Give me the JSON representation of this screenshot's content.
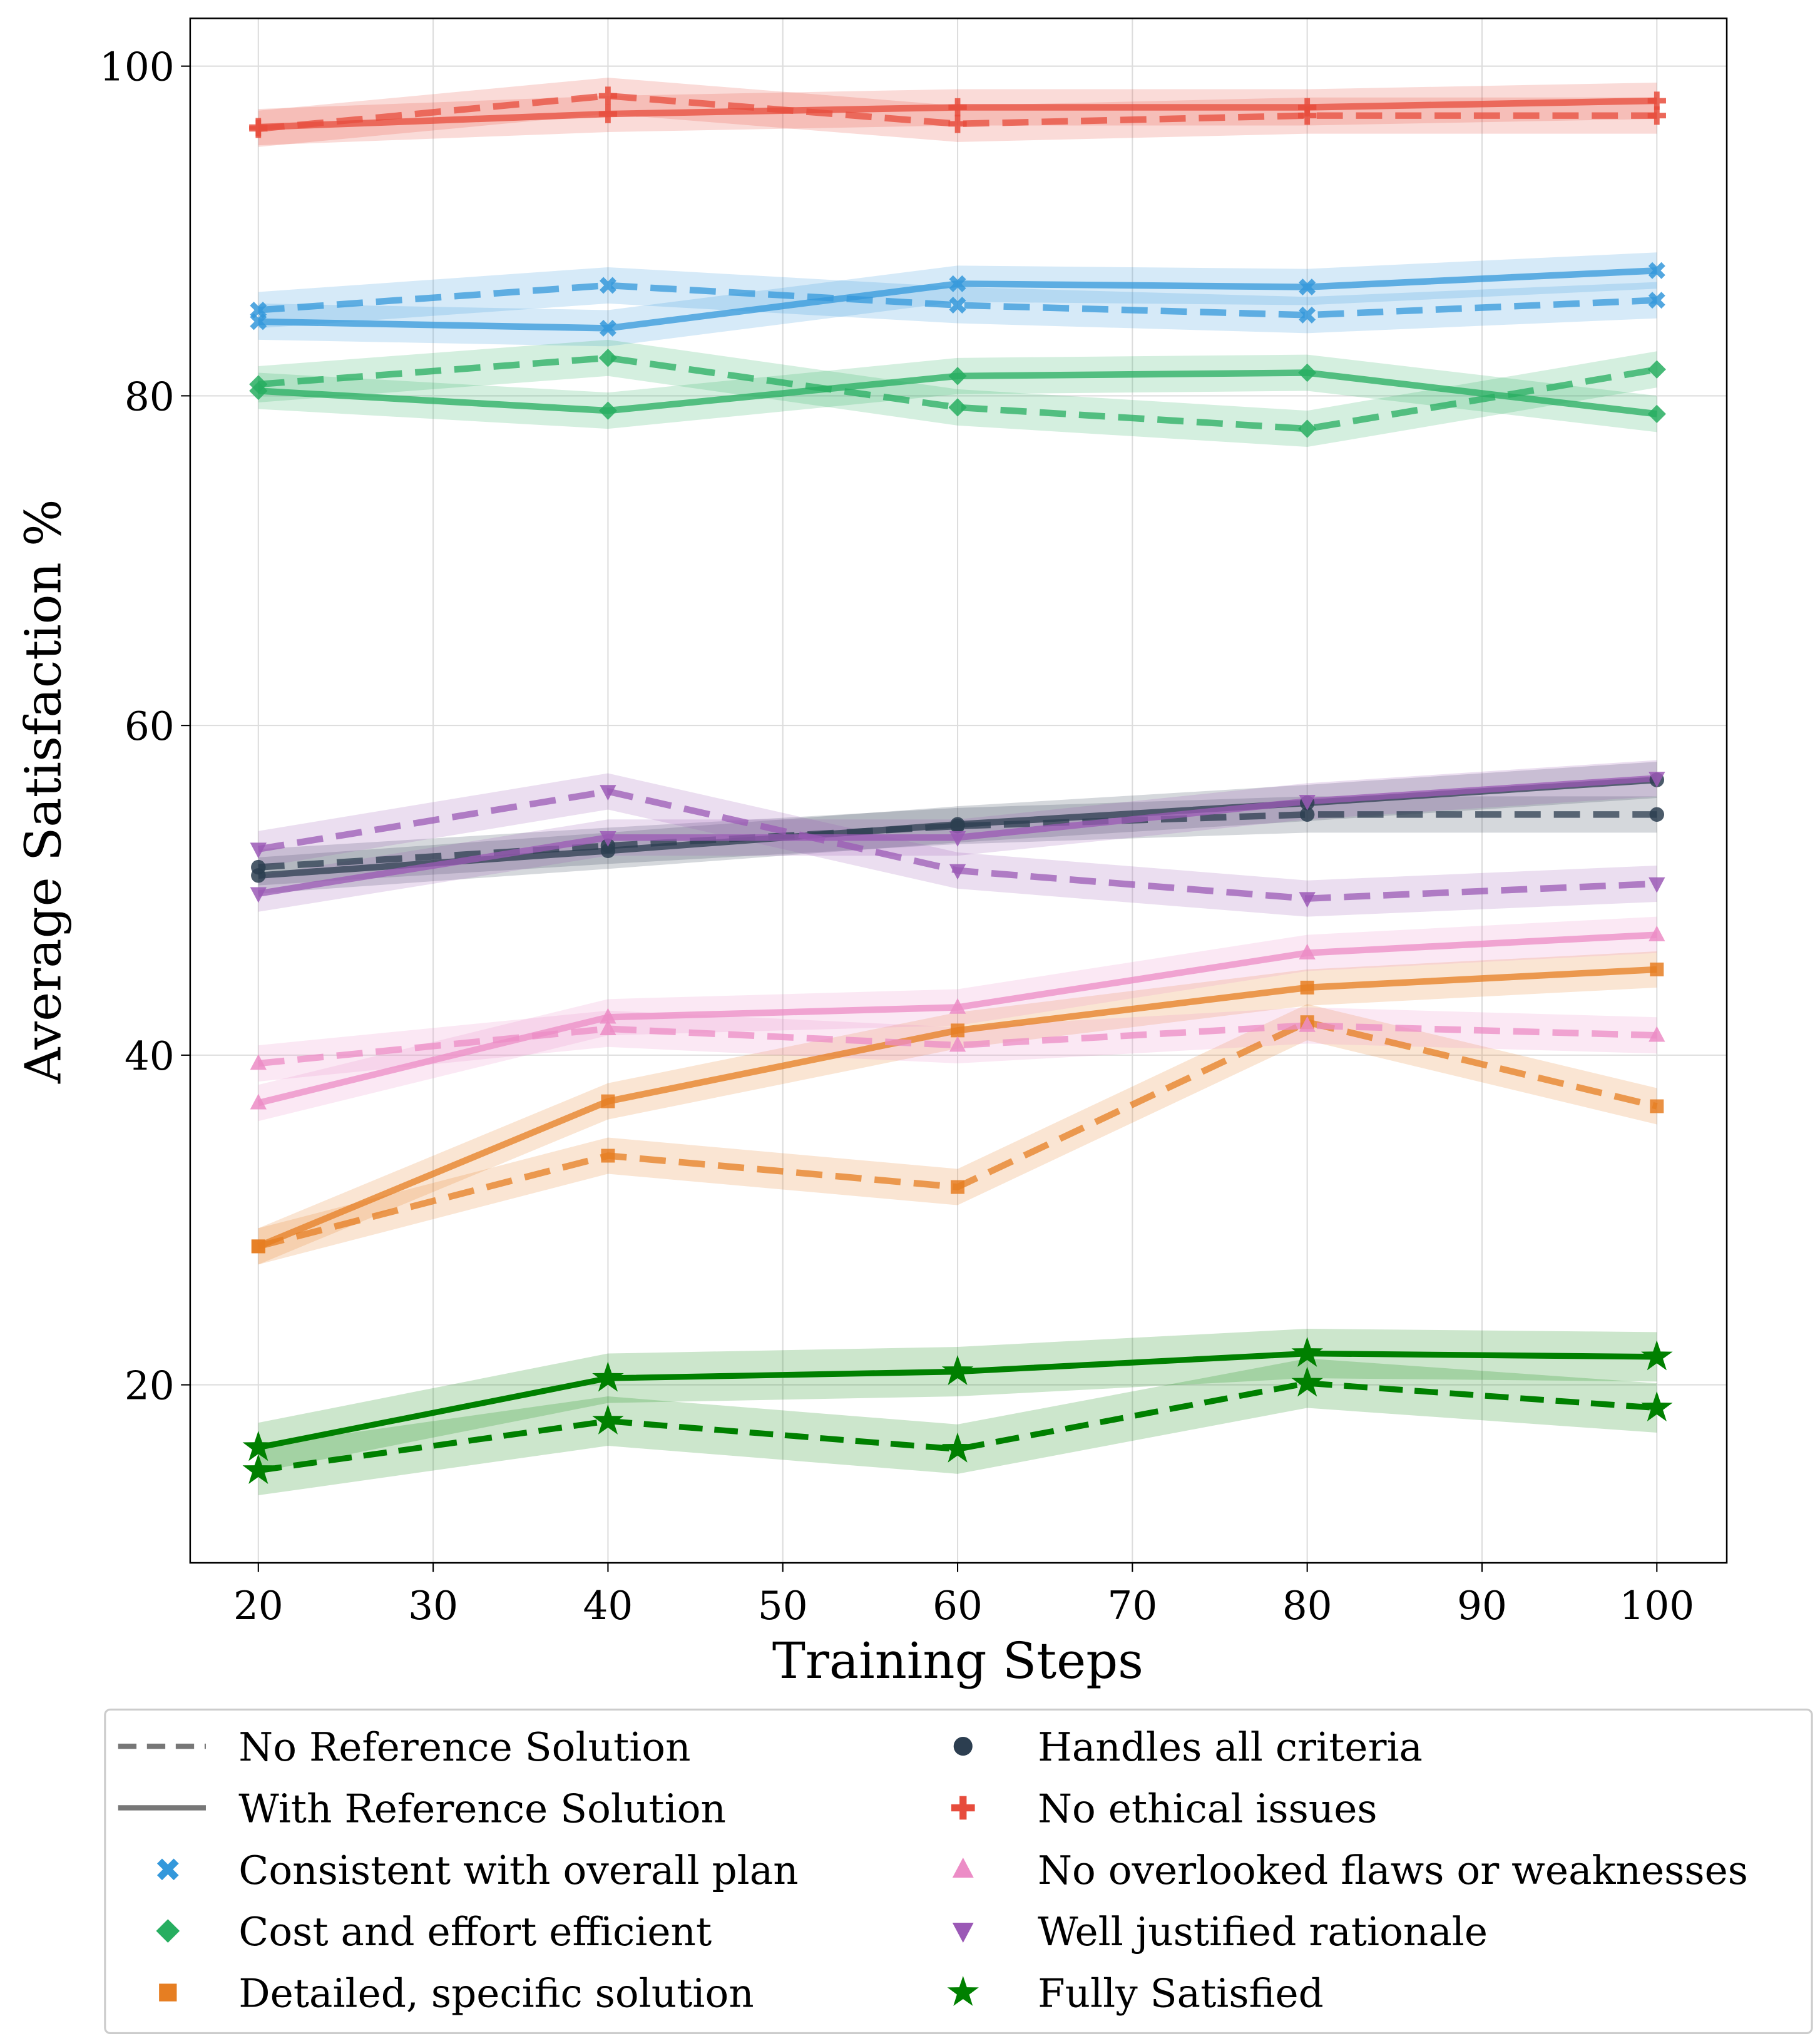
{
  "chart_data": {
    "type": "line",
    "title": "",
    "xlabel": "Training Steps",
    "ylabel": "Average Satisfaction %",
    "xlim": [
      16.1,
      104
    ],
    "ylim": [
      9.2,
      102.9
    ],
    "xticks": [
      20,
      30,
      40,
      50,
      60,
      70,
      80,
      90,
      100
    ],
    "yticks": [
      20,
      40,
      60,
      80,
      100
    ],
    "grid": true,
    "legend_placement": "bottom-outside",
    "x": [
      20,
      40,
      60,
      80,
      100
    ],
    "line_styles": [
      {
        "name": "No Reference Solution",
        "style": "dashed"
      },
      {
        "name": "With Reference Solution",
        "style": "solid"
      }
    ],
    "series": [
      {
        "name": "Consistent with overall plan",
        "color": "#3498db",
        "marker": "x-filled",
        "no_reference": [
          85.2,
          86.7,
          85.5,
          84.9,
          85.8
        ],
        "with_reference": [
          84.5,
          84.1,
          86.8,
          86.6,
          87.6
        ]
      },
      {
        "name": "Cost and effort efficient",
        "color": "#27ae60",
        "marker": "diamond",
        "no_reference": [
          80.7,
          82.3,
          79.3,
          78.0,
          81.6
        ],
        "with_reference": [
          80.3,
          79.1,
          81.2,
          81.4,
          78.9
        ]
      },
      {
        "name": "Detailed, specific solution",
        "color": "#e67e22",
        "marker": "square",
        "no_reference": [
          28.4,
          33.9,
          32.0,
          42.0,
          36.9
        ],
        "with_reference": [
          28.4,
          37.2,
          41.5,
          44.1,
          45.2
        ]
      },
      {
        "name": "Handles all criteria",
        "color": "#2c3e50",
        "marker": "circle",
        "no_reference": [
          51.4,
          52.7,
          53.9,
          54.6,
          54.6
        ],
        "with_reference": [
          50.9,
          52.4,
          54.0,
          55.3,
          56.7
        ]
      },
      {
        "name": "No ethical issues",
        "color": "#e74c3c",
        "marker": "plus-filled",
        "no_reference": [
          96.2,
          98.2,
          96.5,
          97.0,
          97.0
        ],
        "with_reference": [
          96.3,
          97.1,
          97.5,
          97.5,
          97.9
        ]
      },
      {
        "name": "No overlooked flaws or weaknesses",
        "color": "#ec8cc6",
        "marker": "triangle-up",
        "no_reference": [
          39.5,
          41.6,
          40.6,
          41.8,
          41.2
        ],
        "with_reference": [
          37.1,
          42.3,
          42.9,
          46.2,
          47.3
        ]
      },
      {
        "name": "Well justified rationale",
        "color": "#9b59b6",
        "marker": "triangle-down",
        "no_reference": [
          52.5,
          56.0,
          51.2,
          49.5,
          50.4
        ],
        "with_reference": [
          49.8,
          53.2,
          53.2,
          55.4,
          56.8
        ]
      },
      {
        "name": "Fully Satisfied",
        "color": "#008000",
        "marker": "star",
        "no_reference": [
          14.8,
          17.8,
          16.1,
          20.1,
          18.6
        ],
        "with_reference": [
          16.2,
          20.4,
          20.8,
          21.9,
          21.7
        ]
      }
    ]
  }
}
